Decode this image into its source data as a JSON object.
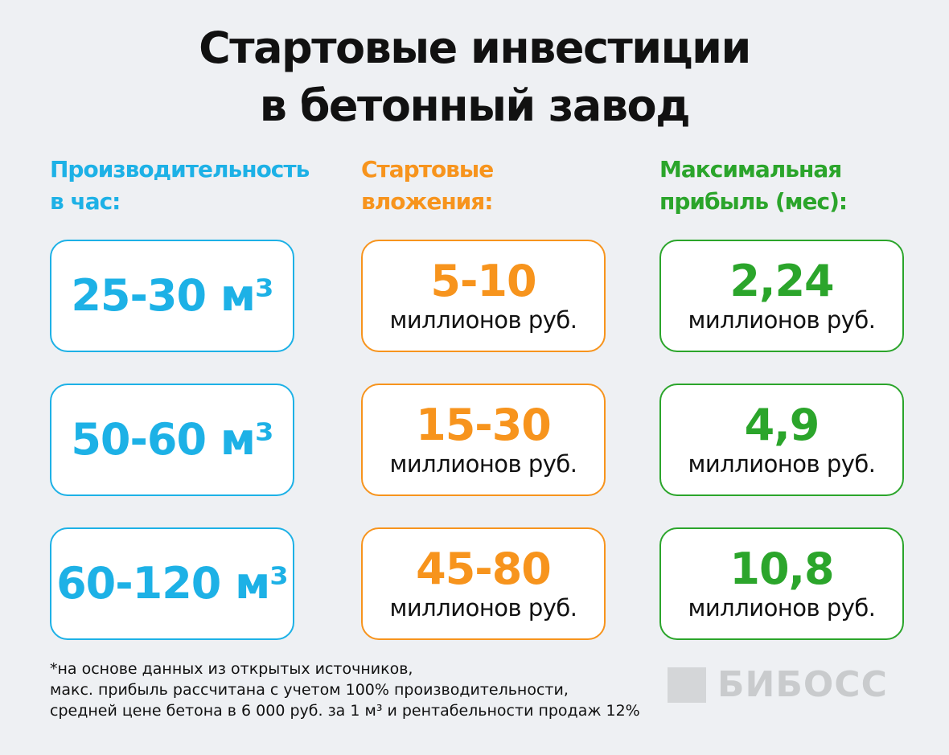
{
  "title": [
    "Стартовые инвестиции",
    "в бетонный завод"
  ],
  "columns": [
    {
      "header": [
        "Производительность",
        "в час:"
      ],
      "color": "#1db1e6",
      "cells": [
        {
          "main": "25-30 м³"
        },
        {
          "main": "50-60 м³"
        },
        {
          "main": "60-120 м³"
        }
      ]
    },
    {
      "header": [
        "Стартовые",
        "вложения:"
      ],
      "color": "#f7941d",
      "cells": [
        {
          "main": "5-10",
          "unit": "миллионов руб."
        },
        {
          "main": "15-30",
          "unit": "миллионов руб."
        },
        {
          "main": "45-80",
          "unit": "миллионов руб."
        }
      ]
    },
    {
      "header": [
        "Максимальная",
        "прибыль (мес):"
      ],
      "color": "#2ba52b",
      "cells": [
        {
          "main": "2,24",
          "unit": "миллионов руб."
        },
        {
          "main": "4,9",
          "unit": "миллионов руб."
        },
        {
          "main": "10,8",
          "unit": "миллионов руб."
        }
      ]
    }
  ],
  "footnote": [
    "*на основе данных из открытых источников,",
    "макс. прибыль рассчитана с учетом 100% производительности,",
    "средней цене бетона в 6 000 руб. за 1 м³ и рентабельности продаж 12%"
  ],
  "logo": "БИБОСС"
}
